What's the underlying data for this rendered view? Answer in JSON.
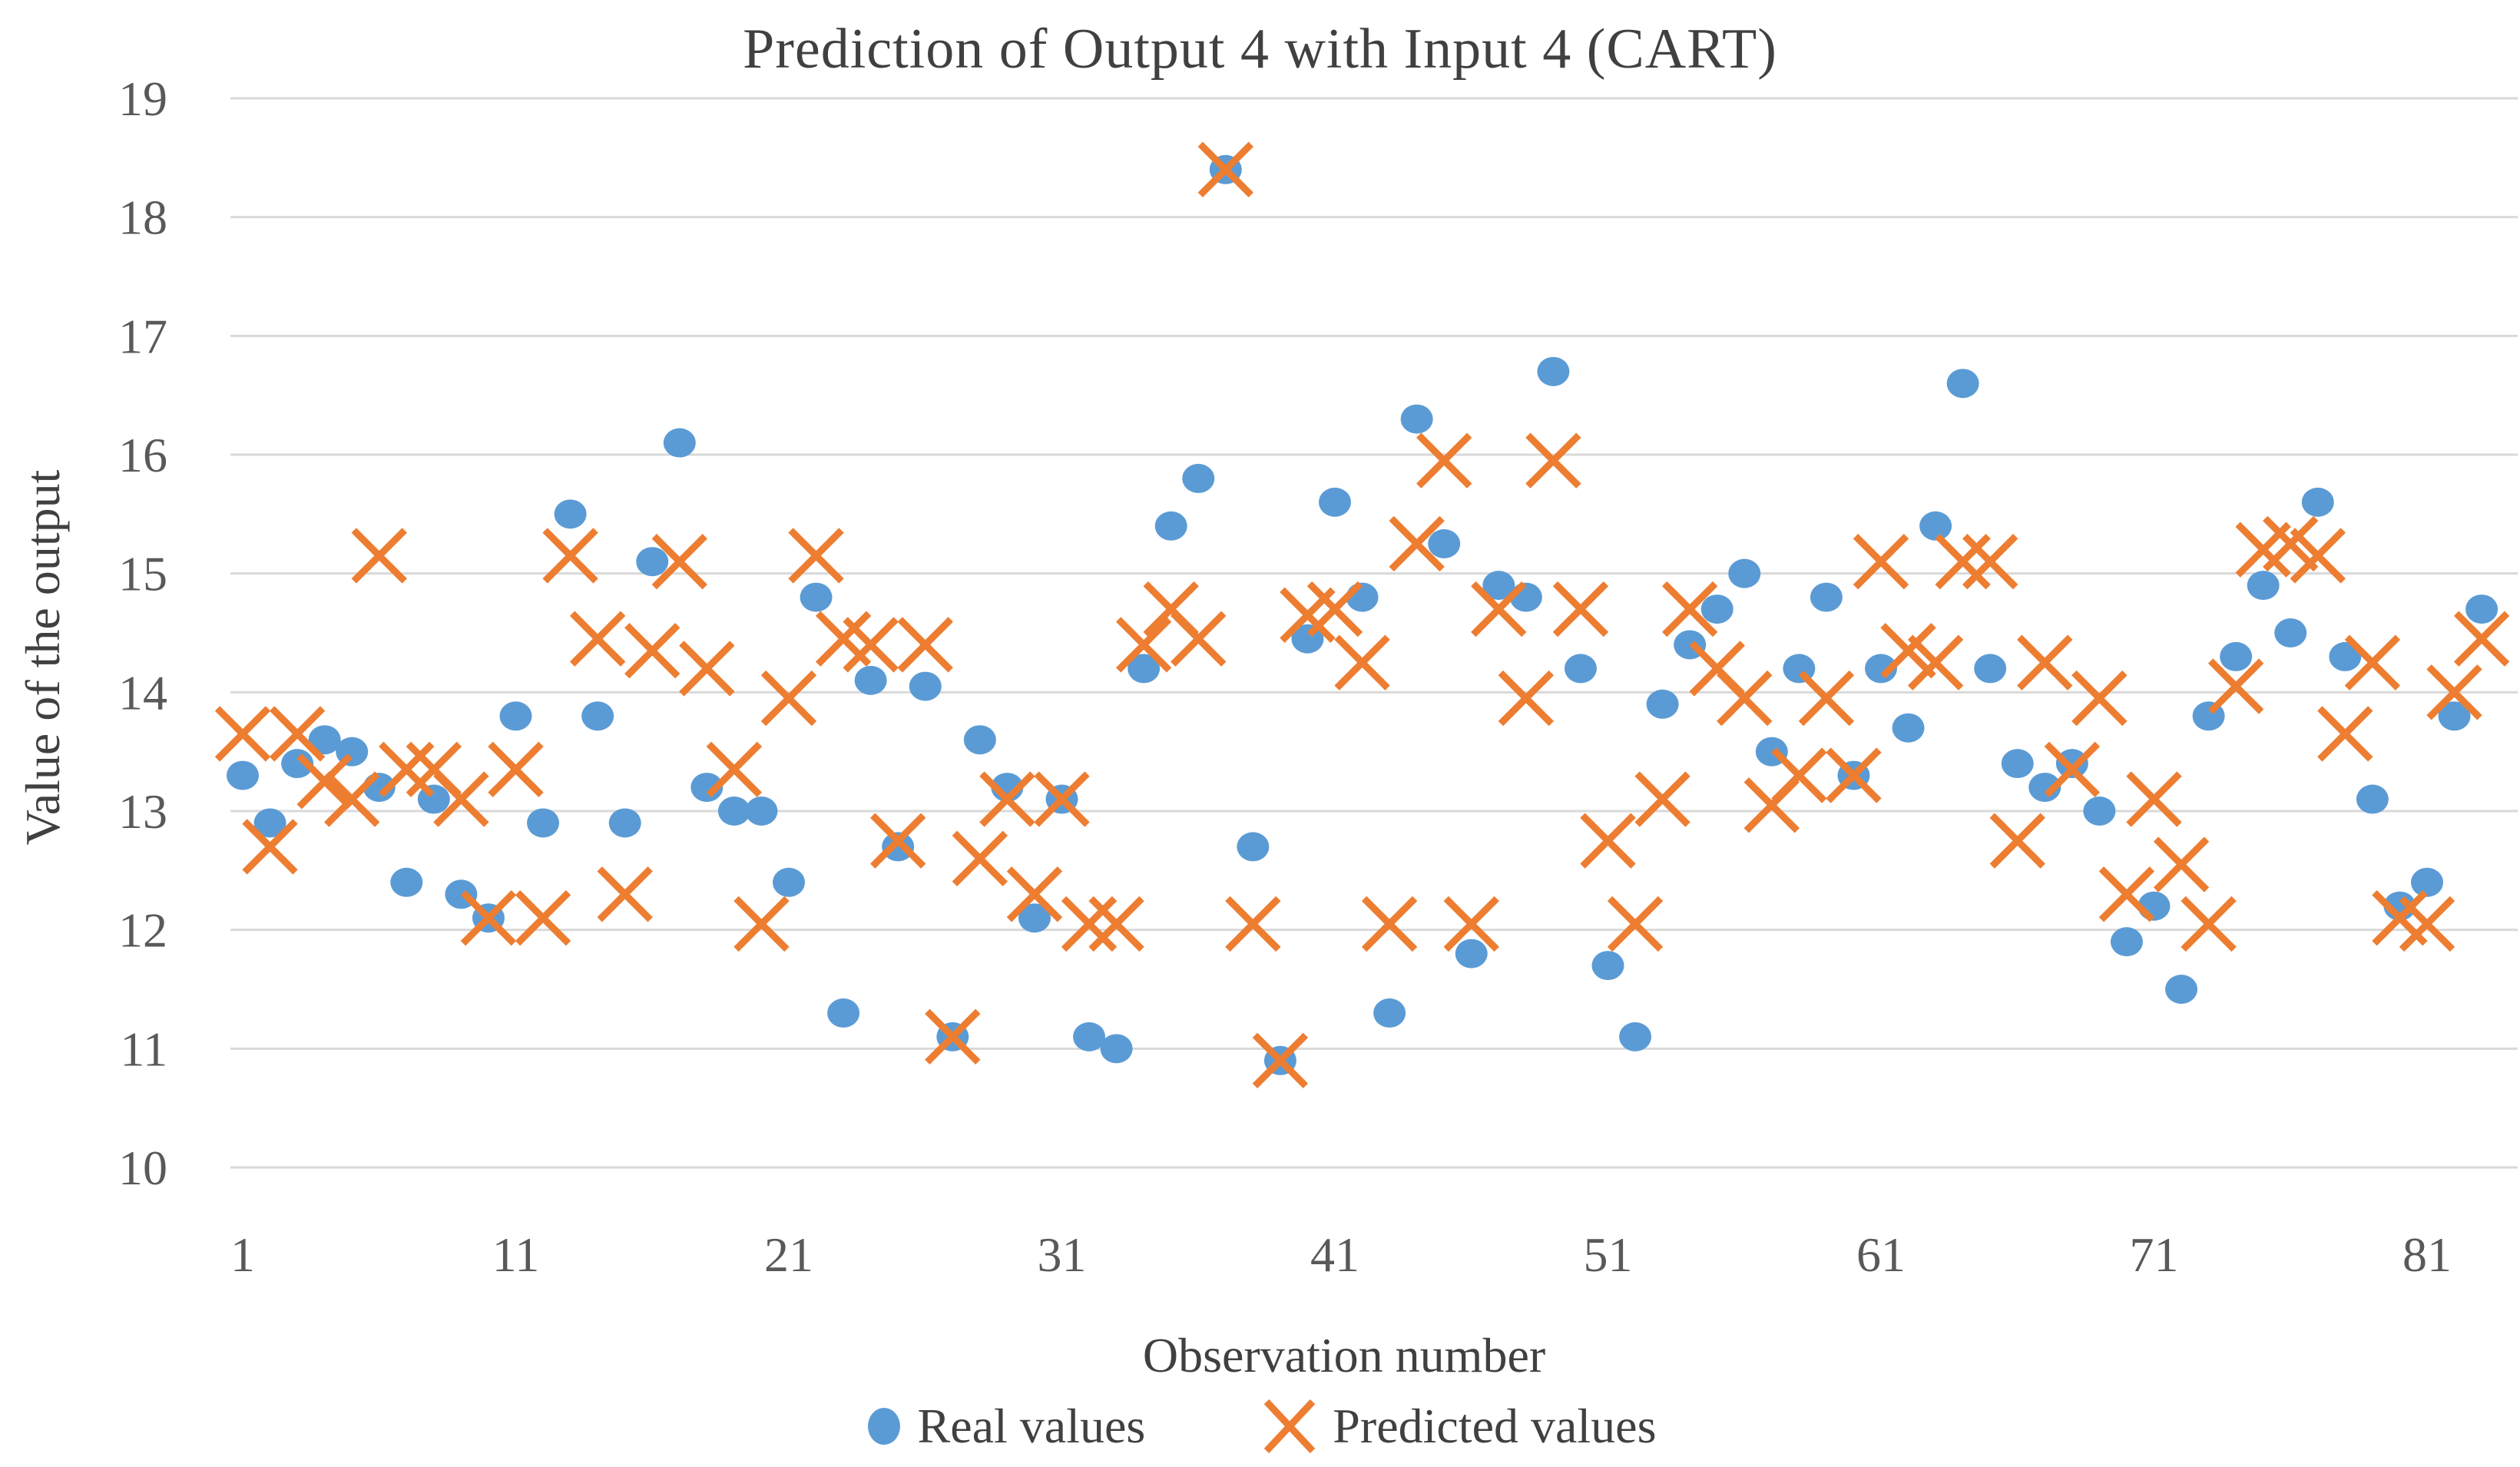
{
  "chart_data": {
    "type": "scatter",
    "title": "Prediction of Output 4 with Input 4 (CART)",
    "xlabel": "Observation number",
    "ylabel": "Value of the output",
    "xlim": [
      0,
      84
    ],
    "ylim": [
      10,
      19
    ],
    "x_ticks": [
      1,
      11,
      21,
      31,
      41,
      51,
      61,
      71,
      81
    ],
    "y_ticks": [
      10,
      11,
      12,
      13,
      14,
      15,
      16,
      17,
      18,
      19
    ],
    "grid": "horizontal",
    "legend_position": "bottom",
    "colors": {
      "real": "#5B9BD5",
      "predicted": "#ED7D31",
      "gridline": "#D9D9D9",
      "title_text": "#404040",
      "tick_text": "#595959"
    },
    "series": [
      {
        "name": "Real values",
        "marker": "circle",
        "x": [
          1,
          2,
          3,
          4,
          5,
          6,
          7,
          8,
          9,
          10,
          11,
          12,
          13,
          14,
          15,
          16,
          17,
          18,
          19,
          20,
          21,
          22,
          23,
          24,
          25,
          26,
          27,
          28,
          29,
          30,
          31,
          32,
          33,
          34,
          35,
          36,
          37,
          38,
          39,
          40,
          41,
          42,
          43,
          44,
          45,
          46,
          47,
          48,
          49,
          50,
          51,
          52,
          53,
          54,
          55,
          56,
          57,
          58,
          59,
          60,
          61,
          62,
          63,
          64,
          65,
          66,
          67,
          68,
          69,
          70,
          71,
          72,
          73,
          74,
          75,
          76,
          77,
          78,
          79,
          80,
          81,
          82,
          83
        ],
        "values": [
          13.3,
          12.9,
          13.4,
          13.6,
          13.5,
          13.2,
          12.4,
          13.1,
          12.3,
          12.1,
          13.8,
          12.9,
          15.5,
          13.8,
          12.9,
          15.1,
          16.1,
          13.2,
          13.0,
          13.0,
          12.4,
          14.8,
          11.3,
          14.1,
          12.7,
          14.05,
          11.1,
          13.6,
          13.2,
          12.1,
          13.1,
          11.1,
          11.0,
          14.2,
          15.4,
          15.8,
          18.4,
          12.7,
          10.9,
          14.45,
          15.6,
          14.8,
          11.3,
          16.3,
          15.25,
          11.8,
          14.9,
          14.8,
          16.7,
          14.2,
          11.7,
          11.1,
          13.9,
          14.4,
          14.7,
          15.0,
          13.5,
          14.2,
          14.8,
          13.3,
          14.2,
          13.7,
          15.4,
          16.6,
          14.2,
          13.4,
          13.2,
          13.4,
          13.0,
          11.9,
          12.2,
          11.5,
          13.8,
          14.3,
          14.9,
          14.5,
          15.6,
          14.3,
          13.1,
          12.2,
          12.4,
          13.8,
          14.7
        ]
      },
      {
        "name": "Predicted values",
        "marker": "x",
        "x": [
          1,
          2,
          3,
          4,
          5,
          6,
          7,
          8,
          9,
          10,
          11,
          12,
          13,
          14,
          15,
          16,
          17,
          18,
          19,
          20,
          21,
          22,
          23,
          24,
          25,
          26,
          27,
          28,
          29,
          30,
          31,
          32,
          33,
          34,
          35,
          36,
          37,
          38,
          39,
          40,
          41,
          42,
          43,
          44,
          45,
          46,
          47,
          48,
          49,
          50,
          51,
          52,
          53,
          54,
          55,
          56,
          57,
          58,
          59,
          60,
          61,
          62,
          63,
          64,
          65,
          66,
          67,
          68,
          69,
          70,
          71,
          72,
          73,
          74,
          75,
          76,
          77,
          78,
          79,
          80,
          81,
          82,
          83
        ],
        "values": [
          13.65,
          12.7,
          13.65,
          13.25,
          13.1,
          15.15,
          13.35,
          13.35,
          13.1,
          12.1,
          13.35,
          12.1,
          15.15,
          14.45,
          12.3,
          14.35,
          15.1,
          14.2,
          13.35,
          12.05,
          13.95,
          15.15,
          14.45,
          14.4,
          12.75,
          14.4,
          11.1,
          12.6,
          13.1,
          12.3,
          13.1,
          12.05,
          12.05,
          14.4,
          14.7,
          14.45,
          18.4,
          12.05,
          10.9,
          14.65,
          14.7,
          14.25,
          12.05,
          15.25,
          15.95,
          12.05,
          14.7,
          13.95,
          15.95,
          14.7,
          12.75,
          12.05,
          13.1,
          14.7,
          14.2,
          13.95,
          13.05,
          13.3,
          13.95,
          13.3,
          15.1,
          14.35,
          14.25,
          15.1,
          15.1,
          12.75,
          14.25,
          13.35,
          13.95,
          12.3,
          13.1,
          12.55,
          12.05,
          14.05,
          15.2,
          15.25,
          15.15,
          13.65,
          14.25,
          12.1,
          12.05,
          14.0,
          14.45
        ]
      }
    ]
  }
}
